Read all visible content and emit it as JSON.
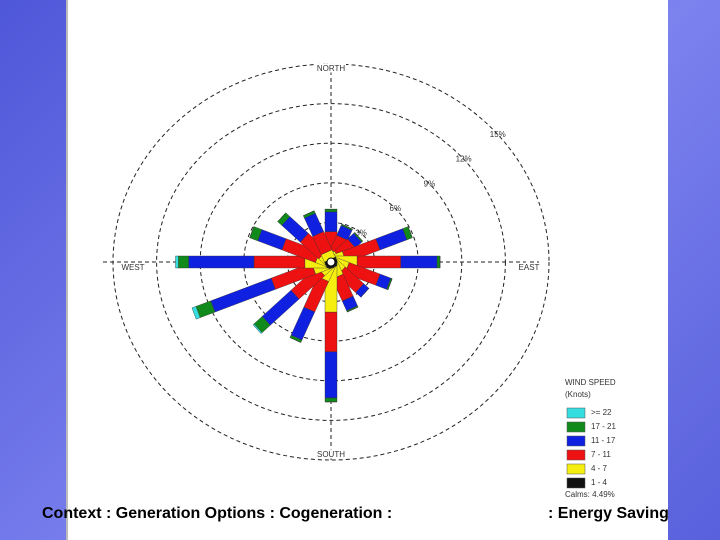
{
  "chart_data": {
    "type": "windrose",
    "categories": [
      "NORTH",
      null,
      null,
      null,
      "EAST",
      null,
      null,
      null,
      "SOUTH",
      null,
      null,
      null,
      "WEST",
      null,
      null,
      null
    ],
    "rlim": [
      0,
      15
    ],
    "rticks": [
      {
        "value": 3,
        "label": "3%"
      },
      {
        "value": 6,
        "label": "6%"
      },
      {
        "value": 9,
        "label": "9%"
      },
      {
        "value": 12,
        "label": "12%"
      },
      {
        "value": 15,
        "label": "15%"
      }
    ],
    "grid": true,
    "legend_title": "WIND SPEED",
    "legend_subtitle": "(Knots)",
    "calms": "Calms: 4.49%",
    "series": [
      {
        "name": ">= 22",
        "color": "#33dde0",
        "values": [
          0,
          0,
          0,
          0,
          0,
          0,
          0,
          0,
          0,
          0,
          0.1,
          0.3,
          0.2,
          0,
          0,
          0
        ]
      },
      {
        "name": "17 - 21",
        "color": "#118a1c",
        "values": [
          0.2,
          0.1,
          0.1,
          0.4,
          0.2,
          0.1,
          0,
          0.1,
          0.3,
          0.2,
          0.8,
          1.1,
          0.7,
          0.6,
          0.4,
          0.2
        ]
      },
      {
        "name": "11 - 17",
        "color": "#1020e0",
        "values": [
          1.5,
          0.8,
          0.6,
          2,
          2.5,
          0.8,
          0.5,
          0.8,
          3.5,
          2.3,
          2.8,
          4.5,
          4.5,
          1.8,
          1.8,
          1.5
        ]
      },
      {
        "name": "7 - 11",
        "color": "#ee1111",
        "values": [
          1.2,
          1.2,
          1.3,
          2.5,
          3,
          2.3,
          1.8,
          1.8,
          3,
          2.5,
          2.5,
          3,
          3.5,
          2.5,
          1.8,
          1.5
        ]
      },
      {
        "name": "4 - 7",
        "color": "#f5ee10",
        "values": [
          0.8,
          0.6,
          0.5,
          0.8,
          1.5,
          1,
          0.8,
          1,
          3.5,
          1.2,
          0.8,
          1,
          1.5,
          0.8,
          0.6,
          0.6
        ]
      },
      {
        "name": "1 - 4",
        "color": "#111111",
        "values": [
          0.3,
          0.2,
          0.2,
          0.2,
          0.3,
          0.2,
          0.2,
          0.2,
          0.3,
          0.2,
          0.2,
          0.3,
          0.3,
          0.2,
          0.2,
          0.2
        ]
      }
    ]
  },
  "footer": {
    "left": "Context : Generation Options : Cogeneration :",
    "right": ": Energy Saving"
  }
}
